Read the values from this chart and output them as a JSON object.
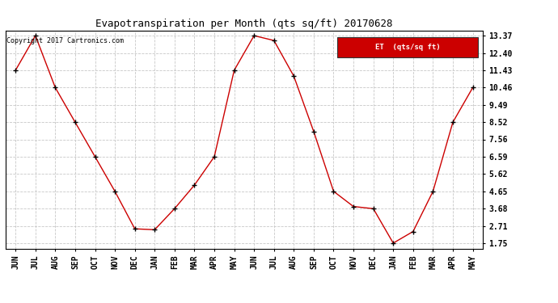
{
  "title": "Evapotranspiration per Month (qts sq/ft) 20170628",
  "legend_label": "ET  (qts/sq ft)",
  "copyright_text": "Copyright 2017 Cartronics.com",
  "x_labels": [
    "JUN",
    "JUL",
    "AUG",
    "SEP",
    "OCT",
    "NOV",
    "DEC",
    "JAN",
    "FEB",
    "MAR",
    "APR",
    "MAY",
    "JUN",
    "JUL",
    "AUG",
    "SEP",
    "OCT",
    "NOV",
    "DEC",
    "JAN",
    "FEB",
    "MAR",
    "APR",
    "MAY"
  ],
  "y_values": [
    11.43,
    13.37,
    10.46,
    8.52,
    6.59,
    4.65,
    2.55,
    2.5,
    3.68,
    5.0,
    6.59,
    11.43,
    13.37,
    13.1,
    11.1,
    8.0,
    4.65,
    3.8,
    3.68,
    1.75,
    2.4,
    4.65,
    8.52,
    10.46
  ],
  "y_ticks": [
    1.75,
    2.71,
    3.68,
    4.65,
    5.62,
    6.59,
    7.56,
    8.52,
    9.49,
    10.46,
    11.43,
    12.4,
    13.37
  ],
  "line_color": "#cc0000",
  "marker": "+",
  "marker_color": "#000000",
  "grid_color": "#c8c8c8",
  "bg_color": "#ffffff",
  "title_fontsize": 9,
  "tick_fontsize": 7,
  "legend_bg": "#cc0000",
  "legend_text_color": "#ffffff",
  "copyright_fontsize": 6
}
